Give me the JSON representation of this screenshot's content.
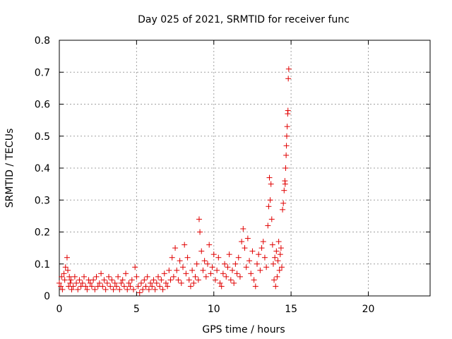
{
  "chart_data": {
    "type": "scatter",
    "title": "Day 025 of 2021, SRMTID for receiver func",
    "xlabel": "GPS time / hours",
    "ylabel": "SRMTID / TECUs",
    "xlim": [
      0,
      24
    ],
    "ylim": [
      0,
      0.8
    ],
    "xticks": [
      0,
      5,
      10,
      15,
      20
    ],
    "xtick_labels": [
      "0",
      "5",
      "10",
      "15",
      "20"
    ],
    "yticks": [
      0,
      0.1,
      0.2,
      0.3,
      0.4,
      0.5,
      0.6,
      0.7,
      0.8
    ],
    "ytick_labels": [
      "0",
      "0.1",
      "0.2",
      "0.3",
      "0.4",
      "0.5",
      "0.6",
      "0.7",
      "0.8"
    ],
    "grid": true,
    "marker": "+",
    "series_color": "#e00000",
    "series": [
      {
        "name": "SRMTID",
        "x": [
          0.0,
          0.1,
          0.15,
          0.2,
          0.3,
          0.35,
          0.4,
          0.5,
          0.55,
          0.6,
          0.65,
          0.7,
          0.75,
          0.8,
          0.9,
          1.0,
          1.1,
          1.2,
          1.3,
          1.4,
          1.5,
          1.6,
          1.7,
          1.8,
          1.9,
          2.0,
          2.1,
          2.2,
          2.3,
          2.4,
          2.5,
          2.6,
          2.7,
          2.8,
          2.9,
          3.0,
          3.1,
          3.2,
          3.3,
          3.4,
          3.5,
          3.6,
          3.7,
          3.8,
          3.9,
          4.0,
          4.1,
          4.2,
          4.3,
          4.4,
          4.5,
          4.6,
          4.7,
          4.8,
          4.9,
          5.0,
          5.1,
          5.2,
          5.3,
          5.4,
          5.5,
          5.6,
          5.7,
          5.8,
          5.9,
          6.0,
          6.1,
          6.2,
          6.3,
          6.4,
          6.5,
          6.6,
          6.7,
          6.8,
          6.9,
          7.0,
          7.1,
          7.2,
          7.3,
          7.4,
          7.5,
          7.6,
          7.7,
          7.8,
          7.9,
          8.0,
          8.1,
          8.2,
          8.3,
          8.4,
          8.5,
          8.6,
          8.7,
          8.8,
          8.9,
          9.0,
          9.05,
          9.1,
          9.2,
          9.3,
          9.4,
          9.5,
          9.6,
          9.7,
          9.8,
          9.9,
          10.0,
          10.1,
          10.2,
          10.3,
          10.4,
          10.5,
          10.6,
          10.7,
          10.8,
          10.9,
          11.0,
          11.1,
          11.2,
          11.3,
          11.4,
          11.5,
          11.6,
          11.7,
          11.8,
          11.9,
          12.0,
          12.1,
          12.2,
          12.3,
          12.4,
          12.5,
          12.6,
          12.7,
          12.8,
          12.9,
          13.0,
          13.1,
          13.2,
          13.3,
          13.4,
          13.5,
          13.55,
          13.6,
          13.65,
          13.7,
          13.75,
          13.8,
          13.85,
          13.9,
          13.95,
          14.0,
          14.05,
          14.1,
          14.15,
          14.2,
          14.25,
          14.3,
          14.35,
          14.4,
          14.45,
          14.5,
          14.55,
          14.6,
          14.62,
          14.65,
          14.68,
          14.7,
          14.72,
          14.75,
          14.78,
          14.8,
          14.82,
          14.85
        ],
        "y": [
          0.04,
          0.03,
          0.06,
          0.02,
          0.07,
          0.05,
          0.09,
          0.12,
          0.08,
          0.03,
          0.06,
          0.04,
          0.05,
          0.02,
          0.03,
          0.06,
          0.04,
          0.02,
          0.05,
          0.03,
          0.04,
          0.06,
          0.03,
          0.02,
          0.05,
          0.04,
          0.03,
          0.05,
          0.02,
          0.06,
          0.03,
          0.04,
          0.07,
          0.03,
          0.05,
          0.02,
          0.04,
          0.06,
          0.03,
          0.05,
          0.02,
          0.04,
          0.03,
          0.06,
          0.02,
          0.04,
          0.05,
          0.03,
          0.07,
          0.02,
          0.04,
          0.03,
          0.05,
          0.02,
          0.09,
          0.06,
          0.03,
          0.01,
          0.04,
          0.02,
          0.05,
          0.03,
          0.06,
          0.02,
          0.04,
          0.03,
          0.05,
          0.02,
          0.04,
          0.06,
          0.03,
          0.05,
          0.02,
          0.07,
          0.04,
          0.03,
          0.08,
          0.05,
          0.12,
          0.06,
          0.15,
          0.08,
          0.05,
          0.11,
          0.04,
          0.09,
          0.16,
          0.07,
          0.12,
          0.05,
          0.03,
          0.08,
          0.04,
          0.06,
          0.1,
          0.05,
          0.24,
          0.2,
          0.14,
          0.08,
          0.11,
          0.06,
          0.1,
          0.16,
          0.07,
          0.09,
          0.13,
          0.05,
          0.08,
          0.12,
          0.04,
          0.03,
          0.07,
          0.1,
          0.06,
          0.09,
          0.13,
          0.05,
          0.08,
          0.04,
          0.1,
          0.07,
          0.12,
          0.06,
          0.17,
          0.21,
          0.15,
          0.09,
          0.18,
          0.11,
          0.07,
          0.14,
          0.05,
          0.03,
          0.1,
          0.13,
          0.08,
          0.15,
          0.17,
          0.12,
          0.09,
          0.22,
          0.28,
          0.37,
          0.3,
          0.35,
          0.24,
          0.16,
          0.1,
          0.05,
          0.12,
          0.03,
          0.14,
          0.06,
          0.11,
          0.17,
          0.08,
          0.13,
          0.15,
          0.09,
          0.27,
          0.29,
          0.33,
          0.36,
          0.35,
          0.4,
          0.44,
          0.47,
          0.5,
          0.53,
          0.57,
          0.58,
          0.68,
          0.71
        ]
      }
    ]
  }
}
